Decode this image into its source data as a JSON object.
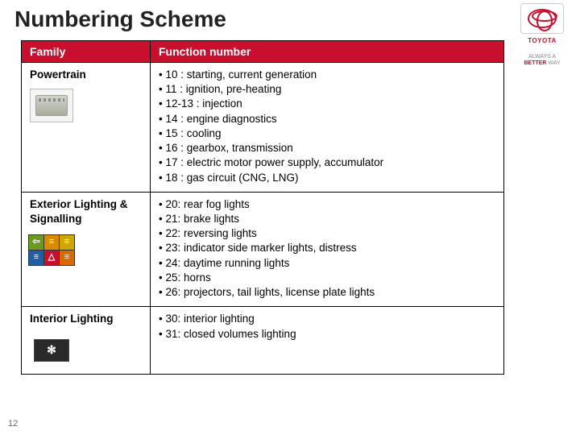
{
  "title": "Numbering Scheme",
  "logo": {
    "brand": "TOYOTA",
    "tagline1": "ALWAYS A",
    "tagline2": "BETTER",
    "tagline3": "WAY"
  },
  "page_number": "12",
  "header": {
    "family": "Family",
    "function": "Function number"
  },
  "rows": [
    {
      "family": "Powertrain",
      "items": [
        "10 : starting, current generation",
        "11 : ignition, pre-heating",
        "12-13 : injection",
        "14 : engine diagnostics",
        "15 : cooling",
        "16 : gearbox, transmission",
        "17 : electric motor power supply,  accumulator",
        "18 : gas circuit (CNG, LNG)"
      ]
    },
    {
      "family": "Exterior Lighting & Signalling",
      "items": [
        "20: rear fog lights",
        "21: brake lights",
        "22: reversing lights",
        "23: indicator side marker lights, distress",
        "24: daytime running lights",
        "25: horns",
        "26: projectors, tail lights, license plate lights"
      ]
    },
    {
      "family": "Interior Lighting",
      "items": [
        "30: interior lighting",
        "31: closed volumes  lighting"
      ]
    }
  ],
  "colors": {
    "brand_red": "#c8102e",
    "border": "#000000",
    "bg": "#ffffff"
  }
}
